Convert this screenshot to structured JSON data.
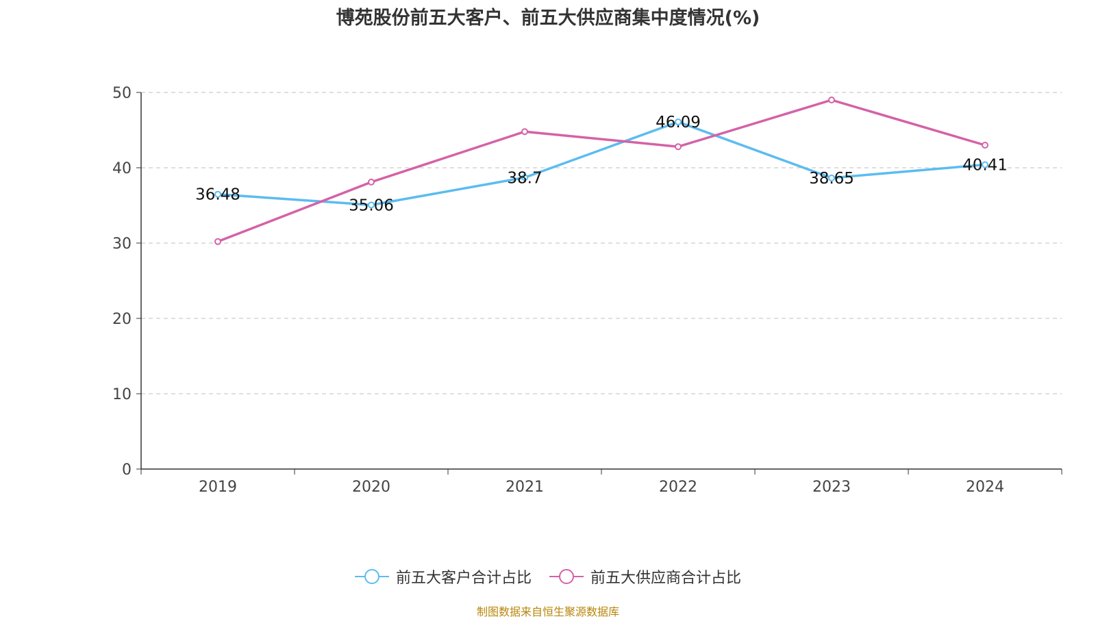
{
  "chart_data": {
    "type": "line",
    "title": "博苑股份前五大客户、前五大供应商集中度情况(%)",
    "categories": [
      "2019",
      "2020",
      "2021",
      "2022",
      "2023",
      "2024"
    ],
    "series": [
      {
        "name": "前五大客户合计占比",
        "color": "#5bbcf0",
        "values": [
          36.48,
          35.06,
          38.7,
          46.09,
          38.65,
          40.41
        ],
        "show_labels": true
      },
      {
        "name": "前五大供应商合计占比",
        "color": "#d462a6",
        "values": [
          30.2,
          38.1,
          44.8,
          42.8,
          49.0,
          43.0
        ],
        "show_labels": false
      }
    ],
    "y_ticks": [
      "0",
      "10",
      "20",
      "30",
      "40",
      "50"
    ],
    "ylim": [
      0,
      50
    ],
    "grid": true,
    "legend_position": "bottom-center",
    "source": "制图数据来自恒生聚源数据库"
  }
}
